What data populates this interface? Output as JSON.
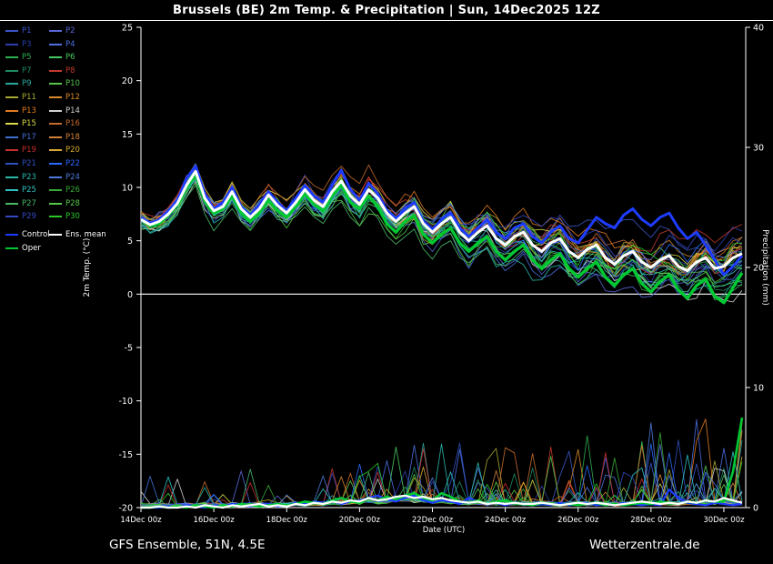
{
  "title": "Brussels  (BE)  2m Temp. & Precipitation | Sun, 14Dec2025 12Z",
  "footer": {
    "left": "GFS Ensemble, 51N, 4.5E",
    "right": "Wetterzentrale.de"
  },
  "legend": {
    "members": [
      {
        "label": "P1",
        "color": "#3a56c8"
      },
      {
        "label": "P2",
        "color": "#5868d8"
      },
      {
        "label": "P3",
        "color": "#2b3fb0"
      },
      {
        "label": "P4",
        "color": "#4b6fe0"
      },
      {
        "label": "P5",
        "color": "#2fae4f"
      },
      {
        "label": "P6",
        "color": "#45c95f"
      },
      {
        "label": "P7",
        "color": "#1d8a60"
      },
      {
        "label": "P8",
        "color": "#c23b2e"
      },
      {
        "label": "P9",
        "color": "#2aa8a0"
      },
      {
        "label": "P10",
        "color": "#57c44b"
      },
      {
        "label": "P11",
        "color": "#a8a832"
      },
      {
        "label": "P12",
        "color": "#d8892b"
      },
      {
        "label": "P13",
        "color": "#e07b20"
      },
      {
        "label": "P14",
        "color": "#cfcfcf"
      },
      {
        "label": "P15",
        "color": "#d8d84a"
      },
      {
        "label": "P16",
        "color": "#c56b2c"
      },
      {
        "label": "P17",
        "color": "#3f6fd0"
      },
      {
        "label": "P18",
        "color": "#d08038"
      },
      {
        "label": "P19",
        "color": "#c62f2f"
      },
      {
        "label": "P20",
        "color": "#d8a832"
      },
      {
        "label": "P21",
        "color": "#3050c0"
      },
      {
        "label": "P22",
        "color": "#2a6bff"
      },
      {
        "label": "P23",
        "color": "#28b8a8"
      },
      {
        "label": "P24",
        "color": "#4a7ad8"
      },
      {
        "label": "P25",
        "color": "#30c0c0"
      },
      {
        "label": "P26",
        "color": "#36a836"
      },
      {
        "label": "P27",
        "color": "#48b868"
      },
      {
        "label": "P28",
        "color": "#58c848"
      },
      {
        "label": "P29",
        "color": "#3448c0"
      },
      {
        "label": "P30",
        "color": "#28c828"
      }
    ],
    "control": {
      "label": "Control",
      "color": "#1e3cff"
    },
    "ens_mean": {
      "label": "Ens. mean",
      "color": "#ffffff"
    },
    "oper": {
      "label": "Oper",
      "color": "#00c832"
    }
  },
  "colors": {
    "background": "#000000",
    "axis": "#ffffff",
    "zero_line": "#ffffff",
    "control": "#1e3cff",
    "ens_mean": "#ffffff",
    "oper": "#00c832"
  },
  "chart_data": {
    "type": "line",
    "title": "Brussels  (BE)  2m Temp. & Precipitation | Sun, 14Dec2025 12Z",
    "xlabel": "Date (UTC)",
    "ylabel_left": "2m Temp. (°C)",
    "ylabel_right": "Precipitation (mm)",
    "x_ticks": [
      "14Dec 00z",
      "16Dec 00z",
      "18Dec 00z",
      "20Dec 00z",
      "22Dec 00z",
      "24Dec 00z",
      "26Dec 00z",
      "28Dec 00z",
      "30Dec 00z"
    ],
    "x_tick_days": [
      0,
      2,
      4,
      6,
      8,
      10,
      12,
      14,
      16
    ],
    "x_range_days": [
      0,
      16.6
    ],
    "time_step_days": 0.25,
    "ylim_temp": [
      -20,
      25
    ],
    "yticks_temp": [
      25,
      20,
      15,
      10,
      5,
      0,
      -5,
      -10,
      -15,
      -20
    ],
    "ylim_precip": [
      0,
      40
    ],
    "yticks_precip": [
      40,
      30,
      20,
      10,
      0
    ],
    "grid": false,
    "legend_position": "top-left",
    "series": {
      "ens_mean_temp": [
        7.0,
        6.5,
        6.8,
        7.5,
        8.5,
        10.2,
        11.5,
        9.0,
        7.8,
        8.2,
        9.6,
        8.0,
        7.2,
        8.0,
        9.3,
        8.3,
        7.6,
        8.6,
        9.8,
        8.8,
        8.2,
        9.6,
        10.6,
        9.2,
        8.4,
        9.8,
        9.0,
        7.6,
        6.8,
        7.6,
        8.2,
        6.6,
        5.8,
        6.6,
        7.2,
        5.8,
        5.0,
        5.8,
        6.4,
        5.2,
        4.6,
        5.4,
        5.8,
        4.6,
        4.0,
        4.8,
        5.2,
        4.0,
        3.4,
        4.2,
        4.6,
        3.4,
        2.8,
        3.6,
        4.0,
        3.0,
        2.5,
        3.2,
        3.6,
        2.6,
        2.2,
        3.0,
        3.4,
        2.4,
        2.6,
        3.4,
        3.8
      ],
      "control_temp": [
        7.2,
        6.6,
        7.0,
        7.8,
        8.8,
        10.8,
        12.0,
        9.4,
        8.0,
        8.6,
        10.0,
        8.2,
        7.4,
        8.4,
        9.6,
        8.6,
        7.8,
        9.0,
        10.2,
        9.2,
        8.6,
        10.2,
        11.6,
        9.8,
        8.8,
        10.4,
        9.4,
        7.8,
        7.0,
        8.0,
        8.6,
        6.8,
        6.0,
        7.0,
        7.6,
        6.2,
        5.4,
        6.2,
        7.0,
        5.8,
        5.2,
        6.2,
        6.6,
        5.4,
        4.8,
        5.8,
        6.4,
        5.2,
        4.8,
        6.0,
        7.2,
        6.6,
        6.2,
        7.4,
        8.0,
        7.0,
        6.4,
        7.2,
        7.6,
        6.2,
        5.2,
        5.8,
        4.6,
        3.2,
        1.8,
        2.6,
        3.6
      ],
      "oper_temp": [
        7.0,
        6.4,
        6.6,
        7.4,
        8.4,
        10.0,
        11.2,
        8.8,
        7.6,
        8.0,
        9.2,
        7.6,
        6.8,
        7.6,
        8.8,
        7.8,
        7.2,
        8.2,
        9.4,
        8.4,
        7.8,
        9.2,
        10.2,
        8.6,
        8.0,
        9.2,
        8.2,
        6.6,
        5.8,
        6.8,
        7.4,
        5.6,
        4.8,
        5.6,
        6.2,
        4.8,
        4.0,
        4.8,
        5.4,
        4.0,
        3.2,
        4.0,
        4.6,
        3.2,
        2.4,
        3.2,
        3.8,
        2.4,
        1.6,
        2.4,
        3.0,
        1.6,
        0.8,
        1.8,
        2.4,
        1.0,
        0.2,
        1.2,
        1.8,
        0.4,
        -0.4,
        0.8,
        1.4,
        -0.2,
        -0.8,
        0.6,
        2.0
      ],
      "ens_mean_precip": [
        0,
        0,
        0.1,
        0,
        0,
        0.1,
        0,
        0.2,
        0.1,
        0,
        0.2,
        0.1,
        0.2,
        0.3,
        0.1,
        0.2,
        0.1,
        0.3,
        0.2,
        0.4,
        0.3,
        0.5,
        0.4,
        0.6,
        0.5,
        0.8,
        0.6,
        0.7,
        0.9,
        1.0,
        0.8,
        0.9,
        0.7,
        0.8,
        0.6,
        0.5,
        0.4,
        0.5,
        0.3,
        0.4,
        0.3,
        0.4,
        0.3,
        0.3,
        0.4,
        0.3,
        0.2,
        0.3,
        0.4,
        0.3,
        0.4,
        0.3,
        0.2,
        0.3,
        0.4,
        0.5,
        0.4,
        0.3,
        0.4,
        0.3,
        0.5,
        0.4,
        0.6,
        0.5,
        0.8,
        0.6,
        0.4
      ],
      "control_precip": [
        0,
        0,
        0,
        0.1,
        0,
        0.2,
        0.1,
        0,
        0.2,
        0.1,
        0.3,
        0.2,
        0.1,
        0.2,
        0.3,
        0.1,
        0.2,
        0.4,
        0.3,
        0.5,
        0.4,
        0.6,
        0.3,
        0.5,
        0.6,
        0.8,
        1.0,
        0.7,
        0.5,
        0.8,
        1.0,
        0.6,
        0.4,
        0.6,
        0.5,
        0.3,
        0.8,
        0.5,
        0.3,
        0.4,
        0.2,
        0.4,
        0.3,
        0.2,
        0.3,
        0.2,
        0.4,
        0.2,
        0.3,
        0.4,
        0.2,
        0.3,
        0.2,
        0.4,
        0.3,
        0.2,
        0.3,
        0.2,
        1.5,
        0.8,
        0.4,
        0.3,
        0.2,
        0.4,
        0.3,
        0.2,
        0.3
      ],
      "oper_precip": [
        0,
        0,
        0.1,
        0,
        0.1,
        0,
        0.2,
        0.1,
        0,
        0.2,
        0.1,
        0.3,
        0.2,
        0.1,
        0.2,
        0.3,
        0.2,
        0.3,
        0.5,
        0.4,
        0.3,
        0.6,
        0.8,
        0.5,
        0.4,
        0.8,
        0.6,
        0.9,
        0.7,
        1.0,
        1.2,
        0.8,
        0.6,
        1.2,
        0.9,
        0.5,
        0.4,
        0.6,
        0.3,
        0.5,
        0.6,
        0.4,
        0.3,
        0.2,
        0.4,
        0.3,
        0.2,
        0.3,
        0.2,
        0.3,
        0.4,
        0.2,
        0.3,
        0.2,
        0.3,
        0.4,
        0.3,
        0.5,
        0.4,
        0.3,
        0.5,
        0.4,
        0.6,
        0.5,
        0.5,
        3.0,
        7.5
      ]
    },
    "ensemble": {
      "count": 30,
      "temp_spread_start": 1.2,
      "temp_spread_end": 4.5,
      "precip_spike_max": 8
    }
  }
}
